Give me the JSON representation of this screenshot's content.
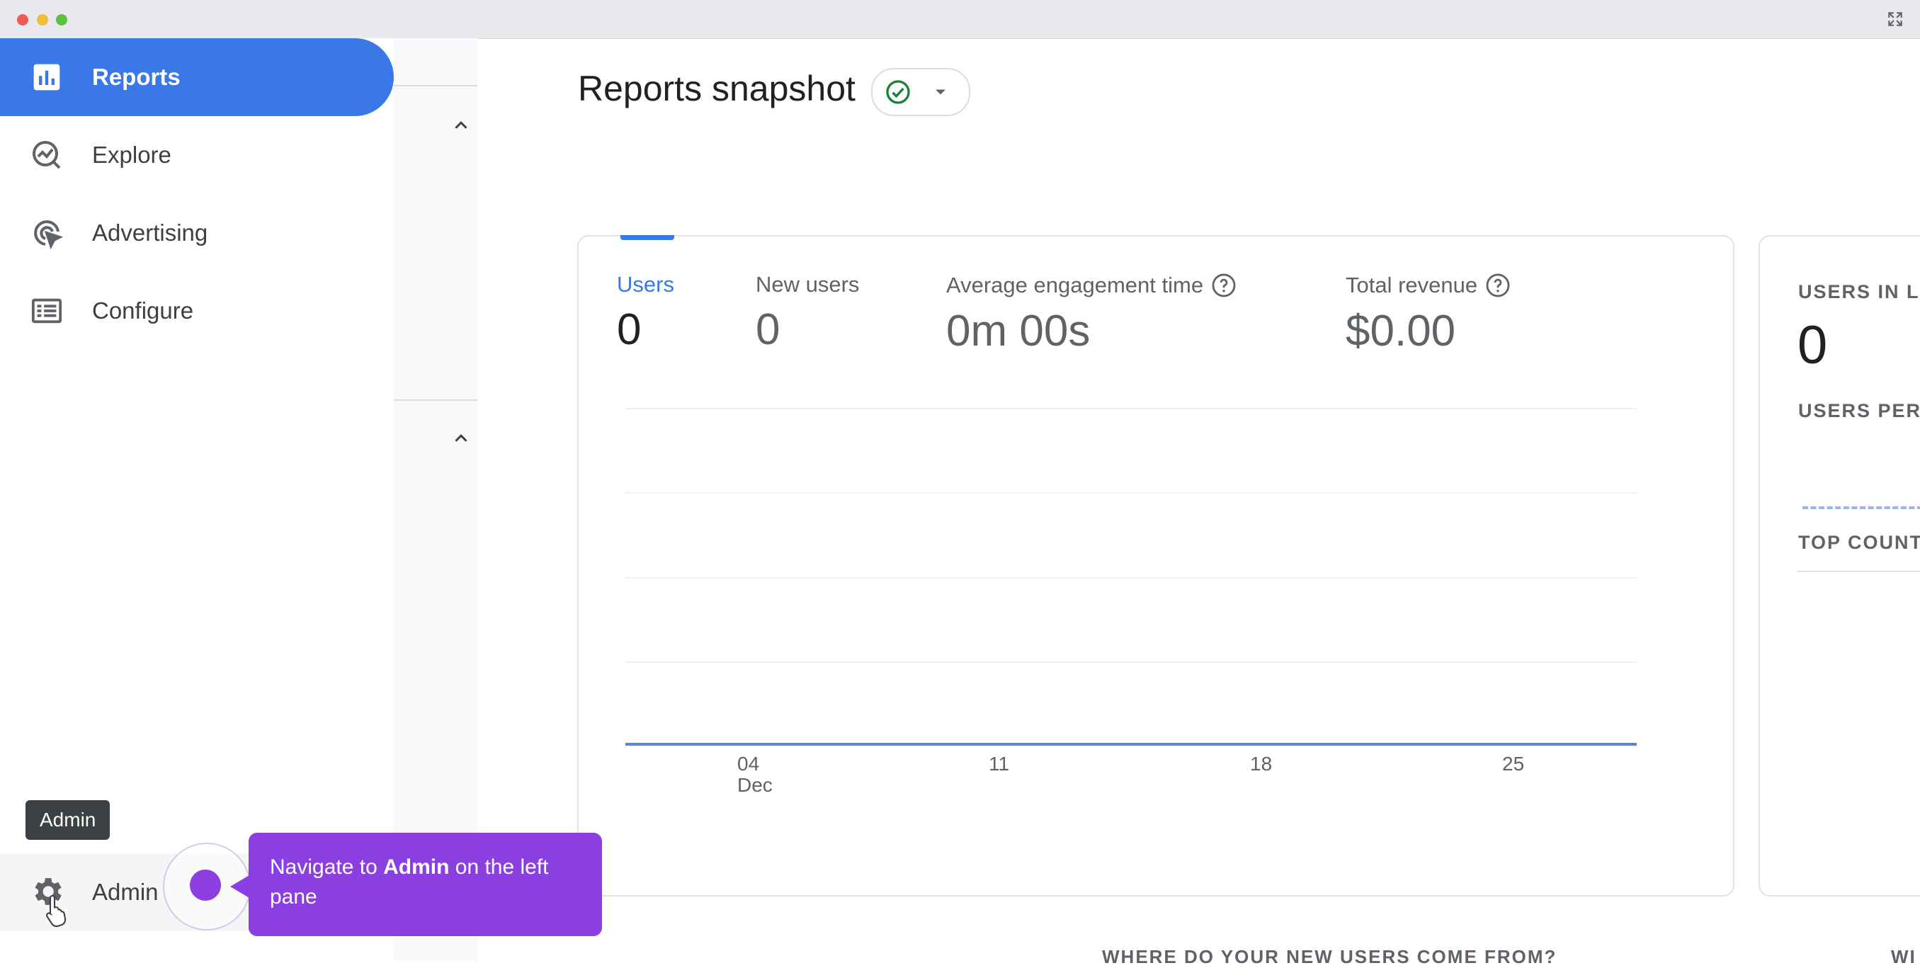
{
  "nav": {
    "items": [
      {
        "label": "Reports",
        "icon": "bar-chart-icon",
        "active": true
      },
      {
        "label": "Explore",
        "icon": "explore-icon",
        "active": false
      },
      {
        "label": "Advertising",
        "icon": "advertising-icon",
        "active": false
      },
      {
        "label": "Configure",
        "icon": "configure-icon",
        "active": false
      }
    ],
    "admin": {
      "label": "Admin",
      "icon": "gear-icon",
      "tooltip": "Admin"
    }
  },
  "header": {
    "title": "Reports snapshot",
    "status_icon": "check-circle-icon"
  },
  "metrics": [
    {
      "label": "Users",
      "value": "0",
      "active": true,
      "help": false
    },
    {
      "label": "New users",
      "value": "0",
      "active": false,
      "help": false
    },
    {
      "label": "Average engagement time",
      "value": "0m 00s",
      "active": false,
      "help": true
    },
    {
      "label": "Total revenue",
      "value": "$0.00",
      "active": false,
      "help": true
    }
  ],
  "chart_data": {
    "type": "line",
    "x_ticks": [
      {
        "label": "04",
        "sub": "Dec"
      },
      {
        "label": "11",
        "sub": ""
      },
      {
        "label": "18",
        "sub": ""
      },
      {
        "label": "25",
        "sub": ""
      }
    ],
    "series": [
      {
        "values": [
          0,
          0,
          0,
          0
        ]
      }
    ],
    "grid": true,
    "color": "#5b84d6"
  },
  "right_card": {
    "heading": "USERS IN LA",
    "value": "0",
    "subheading": "USERS PER",
    "countries_heading": "TOP COUNT"
  },
  "bottom": {
    "heading": "WHERE DO YOUR NEW USERS COME FROM?",
    "heading_2": "WI"
  },
  "callout": {
    "prefix": "Navigate to ",
    "bold": "Admin",
    "suffix": " on the left pane",
    "color": "#8b3fe0"
  },
  "colors": {
    "accent": "#3b78e7",
    "callout": "#8b3fe0"
  }
}
